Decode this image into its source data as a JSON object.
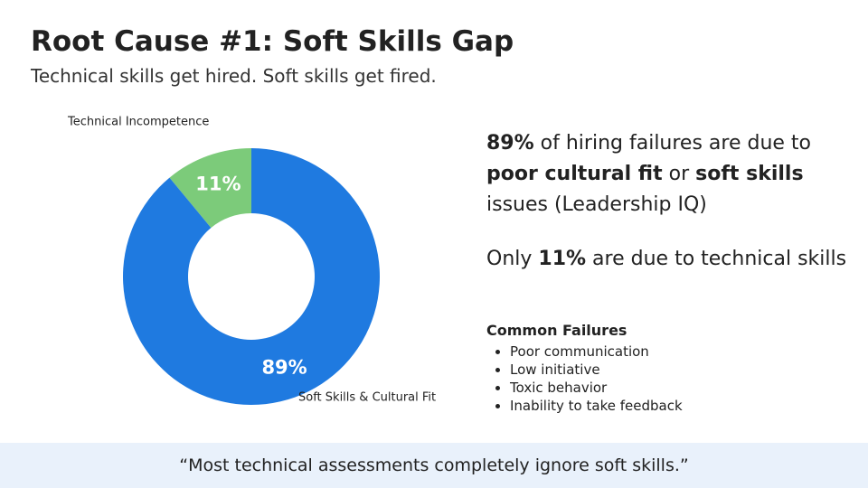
{
  "title": "Root Cause #1: Soft Skills Gap",
  "subtitle": "Technical skills get hired. Soft skills get fired.",
  "chart_data": {
    "type": "donut",
    "categories": [
      "Technical Incompetence",
      "Soft Skills & Cultural Fit"
    ],
    "values": [
      11,
      89
    ],
    "value_labels": [
      "11%",
      "89%"
    ],
    "colors": [
      "#7ccb7a",
      "#1f7ae0"
    ]
  },
  "statements": [
    [
      {
        "text": "89%",
        "bold": true
      },
      {
        "text": " of hiring failures are due to "
      },
      {
        "text": "poor cultural fit",
        "bold": true
      },
      {
        "text": " or "
      },
      {
        "text": "soft skills",
        "bold": true
      },
      {
        "text": " issues (Leadership IQ)"
      }
    ],
    [
      {
        "text": "Only "
      },
      {
        "text": "11%",
        "bold": true
      },
      {
        "text": " are due to technical skills"
      }
    ]
  ],
  "failures": {
    "heading": "Common Failures",
    "items": [
      "Poor communication",
      "Low initiative",
      "Toxic behavior",
      "Inability to take feedback"
    ]
  },
  "quote": "“Most technical assessments completely ignore soft skills.”"
}
